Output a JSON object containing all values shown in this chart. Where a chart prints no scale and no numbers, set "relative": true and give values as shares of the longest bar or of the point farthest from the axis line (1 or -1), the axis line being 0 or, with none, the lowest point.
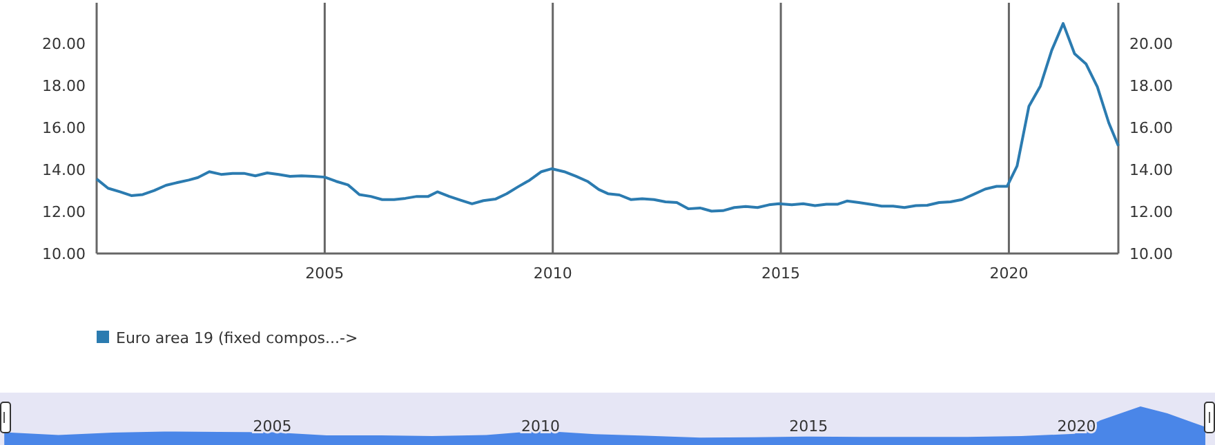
{
  "chart_data": [
    {
      "type": "line",
      "x": [
        2000.0,
        2000.25,
        2000.51,
        2000.76,
        2001.01,
        2001.26,
        2001.52,
        2001.77,
        2002.02,
        2002.22,
        2002.47,
        2002.73,
        2002.98,
        2003.23,
        2003.48,
        2003.74,
        2003.99,
        2004.24,
        2004.49,
        2004.75,
        2005.0,
        2005.25,
        2005.51,
        2005.76,
        2006.01,
        2006.26,
        2006.52,
        2006.77,
        2007.02,
        2007.27,
        2007.47,
        2007.73,
        2007.98,
        2008.23,
        2008.48,
        2008.74,
        2008.99,
        2009.24,
        2009.49,
        2009.75,
        2009.98,
        2010.25,
        2010.51,
        2010.76,
        2011.01,
        2011.21,
        2011.46,
        2011.71,
        2011.96,
        2012.22,
        2012.47,
        2012.72,
        2012.97,
        2013.23,
        2013.48,
        2013.73,
        2013.98,
        2014.23,
        2014.49,
        2014.74,
        2014.96,
        2015.24,
        2015.49,
        2015.75,
        2016.0,
        2016.25,
        2016.45,
        2016.71,
        2016.96,
        2017.21,
        2017.46,
        2017.71,
        2017.96,
        2018.21,
        2018.47,
        2018.72,
        2018.97,
        2019.22,
        2019.48,
        2019.73,
        2019.96,
        2020.18,
        2020.44,
        2020.69,
        2020.94,
        2021.19,
        2021.44,
        2021.69,
        2021.94,
        2022.19,
        2022.4
      ],
      "series": [
        {
          "name": "Euro area 19 (fixed compos...->",
          "color": "#2b7bb0",
          "values": [
            13.55,
            13.11,
            12.94,
            12.76,
            12.81,
            13.0,
            13.25,
            13.38,
            13.5,
            13.62,
            13.9,
            13.77,
            13.82,
            13.82,
            13.7,
            13.84,
            13.77,
            13.68,
            13.7,
            13.68,
            13.64,
            13.44,
            13.27,
            12.81,
            12.72,
            12.57,
            12.57,
            12.63,
            12.72,
            12.72,
            12.94,
            12.72,
            12.54,
            12.37,
            12.52,
            12.59,
            12.85,
            13.18,
            13.49,
            13.9,
            14.04,
            13.9,
            13.68,
            13.44,
            13.05,
            12.85,
            12.79,
            12.57,
            12.61,
            12.57,
            12.46,
            12.43,
            12.13,
            12.17,
            12.02,
            12.04,
            12.19,
            12.24,
            12.19,
            12.32,
            12.37,
            12.32,
            12.37,
            12.28,
            12.35,
            12.35,
            12.5,
            12.43,
            12.35,
            12.26,
            12.26,
            12.19,
            12.28,
            12.3,
            12.43,
            12.46,
            12.57,
            12.81,
            13.07,
            13.2,
            13.2,
            14.17,
            17.02,
            17.98,
            19.69,
            20.96,
            19.52,
            19.04,
            17.94,
            16.23,
            15.13
          ]
        }
      ],
      "xlim": [
        2000,
        2022.4
      ],
      "xticks": [
        2005,
        2010,
        2015,
        2020
      ],
      "ylim": [
        10,
        21.95
      ],
      "yticks": [
        {
          "value": 10,
          "label": "10.00"
        },
        {
          "value": 12,
          "label": "12.00"
        },
        {
          "value": 14,
          "label": "14.00"
        },
        {
          "value": 16,
          "label": "16.00"
        },
        {
          "value": 18,
          "label": "18.00"
        },
        {
          "value": 20,
          "label": "20.00"
        }
      ],
      "y2lim": [
        10,
        21.95
      ],
      "y2ticks": [
        {
          "value": 10,
          "label": "10.00"
        },
        {
          "value": 12,
          "label": "12.00"
        },
        {
          "value": 14,
          "label": "14.00"
        },
        {
          "value": 16,
          "label": "16.00"
        },
        {
          "value": 18,
          "label": "18.00"
        },
        {
          "value": 20,
          "label": "20.00"
        }
      ],
      "grid": "x",
      "legend": "bottom left",
      "marker": "none",
      "line_style": "solid"
    },
    {
      "type": "area",
      "relative": true,
      "x": [
        2000.0,
        2001.01,
        2002.02,
        2002.98,
        2003.99,
        2005.0,
        2006.01,
        2007.02,
        2007.98,
        2008.99,
        2009.98,
        2011.01,
        2011.96,
        2012.97,
        2013.98,
        2014.96,
        2016.0,
        2016.96,
        2017.96,
        2018.97,
        2019.96,
        2020.44,
        2020.94,
        2021.19,
        2021.69,
        2022.19,
        2022.4
      ],
      "series": [
        {
          "color": "#4a86e8",
          "values": [
            0.33,
            0.26,
            0.32,
            0.35,
            0.34,
            0.33,
            0.25,
            0.25,
            0.23,
            0.26,
            0.37,
            0.28,
            0.24,
            0.19,
            0.2,
            0.22,
            0.21,
            0.21,
            0.21,
            0.23,
            0.29,
            0.64,
            0.88,
            1.0,
            0.82,
            0.57,
            0.47
          ]
        }
      ],
      "xlim": [
        1999.92,
        2022.58
      ],
      "xticks": [
        2005,
        2010,
        2015,
        2020
      ],
      "tick_labels": "x",
      "grid": false
    }
  ]
}
